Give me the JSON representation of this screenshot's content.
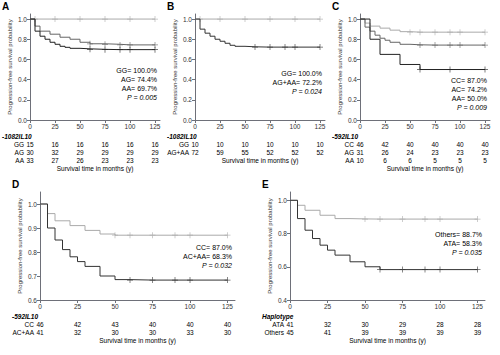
{
  "chart_data": [
    {
      "type": "step",
      "title": "A",
      "ylabel": "Progression-free survival probability",
      "xlabel": "Survival time in months (y)",
      "xlim": [
        0,
        130
      ],
      "ylim": [
        0.0,
        1.05
      ],
      "xticks": [
        0,
        25,
        50,
        75,
        100,
        125
      ],
      "yticks": [
        {
          "value": 0.0,
          "label": "0.0"
        },
        {
          "value": 0.2,
          "label": "0.2"
        },
        {
          "value": 0.4,
          "label": "0.4"
        },
        {
          "value": 0.6,
          "label": "0.6"
        },
        {
          "value": 0.8,
          "label": "0.8"
        },
        {
          "value": 1.0,
          "label": "1.0"
        }
      ],
      "grid": false,
      "marker": "+",
      "series": [
        {
          "name": "GG= 100.0%",
          "color": "#aaaaaa",
          "x": [
            0,
            5,
            25,
            50,
            75,
            100,
            125
          ],
          "values": [
            1.0,
            1.0,
            1.0,
            1.0,
            1.0,
            1.0,
            1.0
          ],
          "censor_x": [
            5,
            25,
            50,
            75,
            100,
            125
          ],
          "censor_values": [
            1.0,
            1.0,
            1.0,
            1.0,
            1.0,
            1.0
          ]
        },
        {
          "name": "AG= 74.4%",
          "color": "#666666",
          "x": [
            0,
            5,
            10,
            20,
            30,
            40,
            50,
            60,
            75,
            90,
            100,
            125
          ],
          "values": [
            1.0,
            0.93,
            0.88,
            0.85,
            0.82,
            0.8,
            0.77,
            0.755,
            0.75,
            0.744,
            0.744,
            0.744
          ],
          "censor_x": [
            60,
            75,
            90,
            100,
            125
          ],
          "censor_values": [
            0.755,
            0.75,
            0.744,
            0.744,
            0.744
          ]
        },
        {
          "name": "AA= 69.7%",
          "color": "#222222",
          "x": [
            0,
            5,
            10,
            15,
            20,
            25,
            30,
            35,
            40,
            50,
            60,
            75,
            90,
            100,
            125
          ],
          "values": [
            1.0,
            0.88,
            0.83,
            0.8,
            0.77,
            0.75,
            0.73,
            0.72,
            0.71,
            0.705,
            0.7,
            0.697,
            0.697,
            0.697,
            0.697
          ],
          "censor_x": [
            60,
            75,
            90,
            100,
            125
          ],
          "censor_values": [
            0.7,
            0.697,
            0.697,
            0.697,
            0.697
          ]
        }
      ],
      "annotation": "P = 0.005",
      "table": {
        "header": "-1082IL10",
        "rows": [
          {
            "label": "GG",
            "values": [
              15,
              16,
              16,
              16,
              16,
              16
            ]
          },
          {
            "label": "AG",
            "values": [
              30,
              32,
              29,
              29,
              29,
              29
            ]
          },
          {
            "label": "AA",
            "values": [
              33,
              27,
              26,
              23,
              23,
              23
            ]
          }
        ]
      }
    },
    {
      "type": "step",
      "title": "B",
      "ylabel": "Progression-free survival probability",
      "xlabel": "Survival time in months (y)",
      "xlim": [
        0,
        130
      ],
      "ylim": [
        0.0,
        1.05
      ],
      "xticks": [
        0,
        25,
        50,
        75,
        100,
        125
      ],
      "yticks": [
        {
          "value": 0.0,
          "label": "0.0"
        },
        {
          "value": 0.2,
          "label": "0.2"
        },
        {
          "value": 0.4,
          "label": "0.4"
        },
        {
          "value": 0.6,
          "label": "0.6"
        },
        {
          "value": 0.8,
          "label": "0.8"
        },
        {
          "value": 1.0,
          "label": "1.0"
        }
      ],
      "grid": false,
      "marker": "+",
      "series": [
        {
          "name": "GG= 100.0%",
          "color": "#aaaaaa",
          "x": [
            0,
            5,
            25,
            50,
            75,
            100,
            125
          ],
          "values": [
            1.0,
            1.0,
            1.0,
            1.0,
            1.0,
            1.0,
            1.0
          ],
          "censor_x": [
            5,
            25,
            50,
            75,
            100,
            125
          ],
          "censor_values": [
            1.0,
            1.0,
            1.0,
            1.0,
            1.0,
            1.0
          ]
        },
        {
          "name": "AG+AA= 72.2%",
          "color": "#333333",
          "x": [
            0,
            5,
            10,
            15,
            20,
            25,
            30,
            35,
            40,
            50,
            60,
            75,
            90,
            100,
            125
          ],
          "values": [
            1.0,
            0.9,
            0.86,
            0.83,
            0.8,
            0.78,
            0.76,
            0.74,
            0.73,
            0.725,
            0.722,
            0.722,
            0.722,
            0.722,
            0.722
          ],
          "censor_x": [
            60,
            75,
            90,
            100,
            125
          ],
          "censor_values": [
            0.722,
            0.722,
            0.722,
            0.722,
            0.722
          ]
        }
      ],
      "annotation": "P = 0.024",
      "table": {
        "header": "-1082IL10",
        "rows": [
          {
            "label": "GG",
            "values": [
              10,
              10,
              10,
              10,
              10,
              10
            ]
          },
          {
            "label": "AG+AA",
            "values": [
              72,
              59,
              55,
              52,
              52,
              52
            ]
          }
        ]
      }
    },
    {
      "type": "step",
      "title": "C",
      "ylabel": "Progression-free survival probability",
      "xlabel": "Survival time in months (y)",
      "xlim": [
        0,
        130
      ],
      "ylim": [
        0.0,
        1.05
      ],
      "xticks": [
        0,
        25,
        50,
        75,
        100,
        125
      ],
      "yticks": [
        {
          "value": 0.0,
          "label": "0.0"
        },
        {
          "value": 0.2,
          "label": "0.2"
        },
        {
          "value": 0.4,
          "label": "0.4"
        },
        {
          "value": 0.6,
          "label": "0.6"
        },
        {
          "value": 0.8,
          "label": "0.8"
        },
        {
          "value": 1.0,
          "label": "1.0"
        }
      ],
      "grid": false,
      "marker": "+",
      "series": [
        {
          "name": "CC= 87.0%",
          "color": "#aaaaaa",
          "x": [
            0,
            5,
            10,
            20,
            30,
            40,
            50,
            60,
            75,
            90,
            100,
            125
          ],
          "values": [
            1.0,
            0.96,
            0.93,
            0.91,
            0.89,
            0.875,
            0.87,
            0.87,
            0.87,
            0.87,
            0.87,
            0.87
          ],
          "censor_x": [
            50,
            60,
            75,
            90,
            100,
            125
          ],
          "censor_values": [
            0.87,
            0.87,
            0.87,
            0.87,
            0.87,
            0.87
          ]
        },
        {
          "name": "AC= 74.2%",
          "color": "#666666",
          "x": [
            0,
            5,
            10,
            15,
            20,
            25,
            30,
            40,
            50,
            60,
            75,
            90,
            100,
            125
          ],
          "values": [
            1.0,
            0.92,
            0.88,
            0.84,
            0.81,
            0.79,
            0.77,
            0.75,
            0.745,
            0.742,
            0.742,
            0.742,
            0.742,
            0.742
          ],
          "censor_x": [
            60,
            75,
            90,
            100,
            125
          ],
          "censor_values": [
            0.742,
            0.742,
            0.742,
            0.742,
            0.742
          ]
        },
        {
          "name": "AA= 50.0%",
          "color": "#222222",
          "x": [
            0,
            10,
            20,
            40,
            60,
            90,
            125
          ],
          "values": [
            1.0,
            0.8,
            0.65,
            0.55,
            0.5,
            0.5,
            0.5
          ],
          "censor_x": [
            60,
            90,
            125
          ],
          "censor_values": [
            0.5,
            0.5,
            0.5
          ]
        }
      ],
      "annotation": "P = 0.009",
      "table": {
        "header": "-592IL10",
        "rows": [
          {
            "label": "CC",
            "values": [
              46,
              42,
              40,
              40,
              40,
              40
            ]
          },
          {
            "label": "AG",
            "values": [
              31,
              26,
              24,
              23,
              23,
              23
            ]
          },
          {
            "label": "AA",
            "values": [
              10,
              6,
              6,
              5,
              5,
              5
            ]
          }
        ]
      }
    },
    {
      "type": "step",
      "title": "D",
      "ylabel": "Progression-free survival probability",
      "xlabel": "Survival time in months (y)",
      "xlim": [
        0,
        130
      ],
      "ylim": [
        0.6,
        1.05
      ],
      "xticks": [
        0,
        25,
        50,
        75,
        100,
        125
      ],
      "yticks": [
        {
          "value": 0.6,
          "label": "0.6"
        },
        {
          "value": 0.7,
          "label": "0.7"
        },
        {
          "value": 0.8,
          "label": "0.8"
        },
        {
          "value": 0.9,
          "label": "0.9"
        },
        {
          "value": 1.0,
          "label": "1.0"
        }
      ],
      "grid": false,
      "marker": "+",
      "series": [
        {
          "name": "CC= 87.0%",
          "color": "#aaaaaa",
          "x": [
            0,
            5,
            10,
            20,
            30,
            40,
            50,
            60,
            75,
            90,
            100,
            125
          ],
          "values": [
            1.0,
            0.96,
            0.93,
            0.91,
            0.89,
            0.875,
            0.87,
            0.87,
            0.87,
            0.87,
            0.87,
            0.87
          ],
          "censor_x": [
            50,
            60,
            75,
            90,
            100,
            125
          ],
          "censor_values": [
            0.87,
            0.87,
            0.87,
            0.87,
            0.87,
            0.87
          ]
        },
        {
          "name": "AC+AA= 68.3%",
          "color": "#333333",
          "x": [
            0,
            5,
            10,
            15,
            20,
            25,
            30,
            40,
            50,
            60,
            75,
            90,
            100,
            125
          ],
          "values": [
            1.0,
            0.9,
            0.85,
            0.81,
            0.78,
            0.76,
            0.74,
            0.7,
            0.685,
            0.683,
            0.683,
            0.683,
            0.683,
            0.683
          ],
          "censor_x": [
            60,
            75,
            90,
            100,
            125
          ],
          "censor_values": [
            0.683,
            0.683,
            0.683,
            0.683,
            0.683
          ]
        }
      ],
      "annotation": "P = 0.032",
      "table": {
        "header": "-592IL10",
        "rows": [
          {
            "label": "CC",
            "values": [
              46,
              42,
              43,
              40,
              40,
              40
            ]
          },
          {
            "label": "AC+AA",
            "values": [
              41,
              32,
              30,
              30,
              33,
              30
            ]
          }
        ]
      }
    },
    {
      "type": "step",
      "title": "E",
      "ylabel": "Progression-free survival probability",
      "xlabel": "Survival time in months (y)",
      "xlim": [
        0,
        130
      ],
      "ylim": [
        0.4,
        1.05
      ],
      "xticks": [
        0,
        25,
        50,
        75,
        100,
        125
      ],
      "yticks": [
        {
          "value": 0.4,
          "label": "0.4"
        },
        {
          "value": 0.6,
          "label": "0.6"
        },
        {
          "value": 0.8,
          "label": "0.8"
        },
        {
          "value": 1.0,
          "label": "1.0"
        }
      ],
      "grid": false,
      "marker": "+",
      "series": [
        {
          "name": "Others= 88.7%",
          "color": "#aaaaaa",
          "x": [
            0,
            5,
            10,
            20,
            30,
            40,
            50,
            60,
            75,
            90,
            100,
            125
          ],
          "values": [
            1.0,
            0.97,
            0.94,
            0.91,
            0.89,
            0.888,
            0.887,
            0.887,
            0.887,
            0.887,
            0.887,
            0.887
          ],
          "censor_x": [
            50,
            60,
            75,
            90,
            100,
            125
          ],
          "censor_values": [
            0.887,
            0.887,
            0.887,
            0.887,
            0.887,
            0.887
          ]
        },
        {
          "name": "ATA= 58.3%",
          "color": "#333333",
          "x": [
            0,
            5,
            10,
            15,
            20,
            25,
            30,
            40,
            50,
            60,
            75,
            90,
            100,
            125
          ],
          "values": [
            1.0,
            0.89,
            0.82,
            0.77,
            0.73,
            0.7,
            0.67,
            0.63,
            0.6,
            0.583,
            0.583,
            0.583,
            0.583,
            0.583
          ],
          "censor_x": [
            60,
            75,
            90,
            100,
            125
          ],
          "censor_values": [
            0.583,
            0.583,
            0.583,
            0.583,
            0.583
          ]
        }
      ],
      "annotation": "P = 0.035",
      "table": {
        "header": "Haplotype",
        "rows": [
          {
            "label": "ATA",
            "values": [
              41,
              32,
              30,
              29,
              28,
              28
            ]
          },
          {
            "label": "Others",
            "values": [
              45,
              41,
              39,
              39,
              39,
              39
            ]
          }
        ]
      }
    }
  ]
}
